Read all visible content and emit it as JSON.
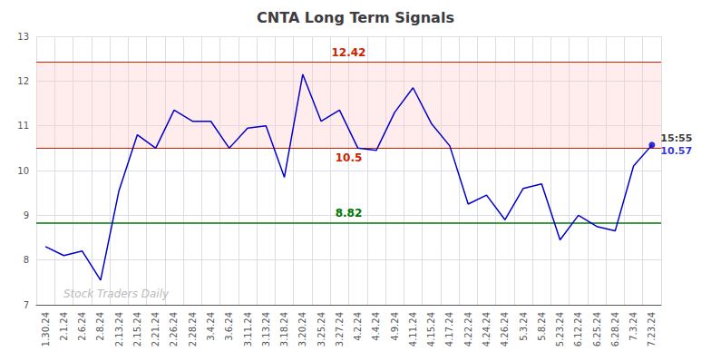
{
  "chart_data": {
    "type": "line",
    "title": "CNTA Long Term Signals",
    "categories": [
      "1.30.24",
      "2.1.24",
      "2.6.24",
      "2.8.24",
      "2.13.24",
      "2.15.24",
      "2.21.24",
      "2.26.24",
      "2.28.24",
      "3.4.24",
      "3.6.24",
      "3.11.24",
      "3.13.24",
      "3.18.24",
      "3.20.24",
      "3.25.24",
      "3.27.24",
      "4.2.24",
      "4.4.24",
      "4.9.24",
      "4.11.24",
      "4.15.24",
      "4.17.24",
      "4.22.24",
      "4.24.24",
      "4.26.24",
      "5.3.24",
      "5.8.24",
      "5.23.24",
      "6.12.24",
      "6.25.24",
      "6.28.24",
      "7.3.24",
      "7.23.24"
    ],
    "values": [
      8.3,
      8.1,
      8.2,
      7.55,
      9.55,
      10.8,
      10.5,
      11.35,
      11.1,
      11.1,
      10.5,
      10.95,
      11.0,
      9.85,
      12.15,
      11.1,
      11.35,
      10.5,
      10.45,
      11.3,
      11.85,
      11.05,
      10.55,
      9.25,
      9.45,
      8.9,
      9.6,
      9.7,
      8.45,
      9.0,
      8.75,
      8.65,
      10.1,
      10.57
    ],
    "color": "#0000cc",
    "ylim": [
      7,
      13
    ],
    "yticks": [
      7,
      8,
      9,
      10,
      11,
      12,
      13
    ],
    "grid": true,
    "hlines": [
      {
        "value": 12.42,
        "label": "12.42",
        "color": "#cc2200"
      },
      {
        "value": 10.5,
        "label": "10.5",
        "color": "#cc2200"
      },
      {
        "value": 8.82,
        "label": "8.82",
        "color": "#007700"
      }
    ],
    "band": {
      "from": 10.5,
      "to": 12.42,
      "color": "#ffcccc"
    },
    "last_point": {
      "label": "15:55",
      "value_label": "10.57"
    },
    "watermark": "Stock Traders Daily"
  }
}
